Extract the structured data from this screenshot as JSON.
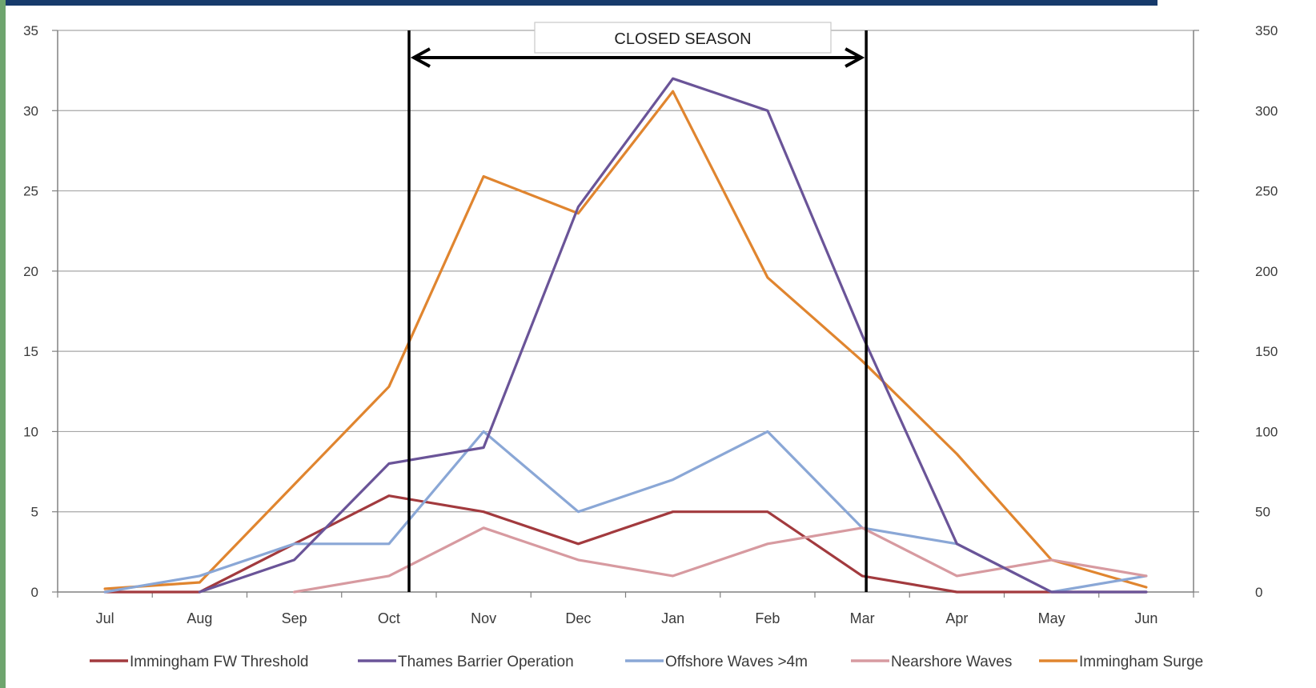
{
  "chart_data": {
    "type": "line",
    "categories": [
      "Jul",
      "Aug",
      "Sep",
      "Oct",
      "Nov",
      "Dec",
      "Jan",
      "Feb",
      "Mar",
      "Apr",
      "May",
      "Jun"
    ],
    "y_left": {
      "ylim": [
        0,
        35
      ],
      "ticks": [
        "0",
        "5",
        "10",
        "15",
        "20",
        "25",
        "30",
        "35"
      ]
    },
    "y_right": {
      "ylim": [
        0,
        350
      ],
      "ticks": [
        "0",
        "50",
        "100",
        "150",
        "200",
        "250",
        "300",
        "350"
      ]
    },
    "grid": true,
    "legend_position": "bottom",
    "annotation": {
      "label": "CLOSED SEASON",
      "start_between": [
        "Oct",
        "Nov"
      ],
      "end": "Mar"
    },
    "series": [
      {
        "name": "Immingham  FW Threshold",
        "axis": "left",
        "color": "#a23a3e",
        "values": [
          0,
          0,
          3,
          6,
          5,
          3,
          5,
          5,
          1,
          0,
          0,
          0
        ]
      },
      {
        "name": "Thames Barrier Operation",
        "axis": "left",
        "color": "#6a5498",
        "values": [
          null,
          0,
          2,
          8,
          9,
          24,
          32,
          30,
          16,
          3,
          0,
          0
        ]
      },
      {
        "name": "Offshore Waves >4m",
        "axis": "left",
        "color": "#8aa7d6",
        "values": [
          0,
          1,
          3,
          3,
          10,
          5,
          7,
          10,
          4,
          3,
          0,
          1
        ]
      },
      {
        "name": "Nearshore Waves",
        "axis": "left",
        "color": "#d79aa0",
        "values": [
          null,
          null,
          0,
          1,
          4,
          2,
          1,
          3,
          4,
          1,
          2,
          1
        ]
      },
      {
        "name": "Immingham Surge",
        "axis": "right",
        "color": "#e0852f",
        "values": [
          2,
          6,
          67,
          128,
          259,
          236,
          312,
          196,
          144,
          86,
          20,
          3
        ]
      }
    ]
  }
}
